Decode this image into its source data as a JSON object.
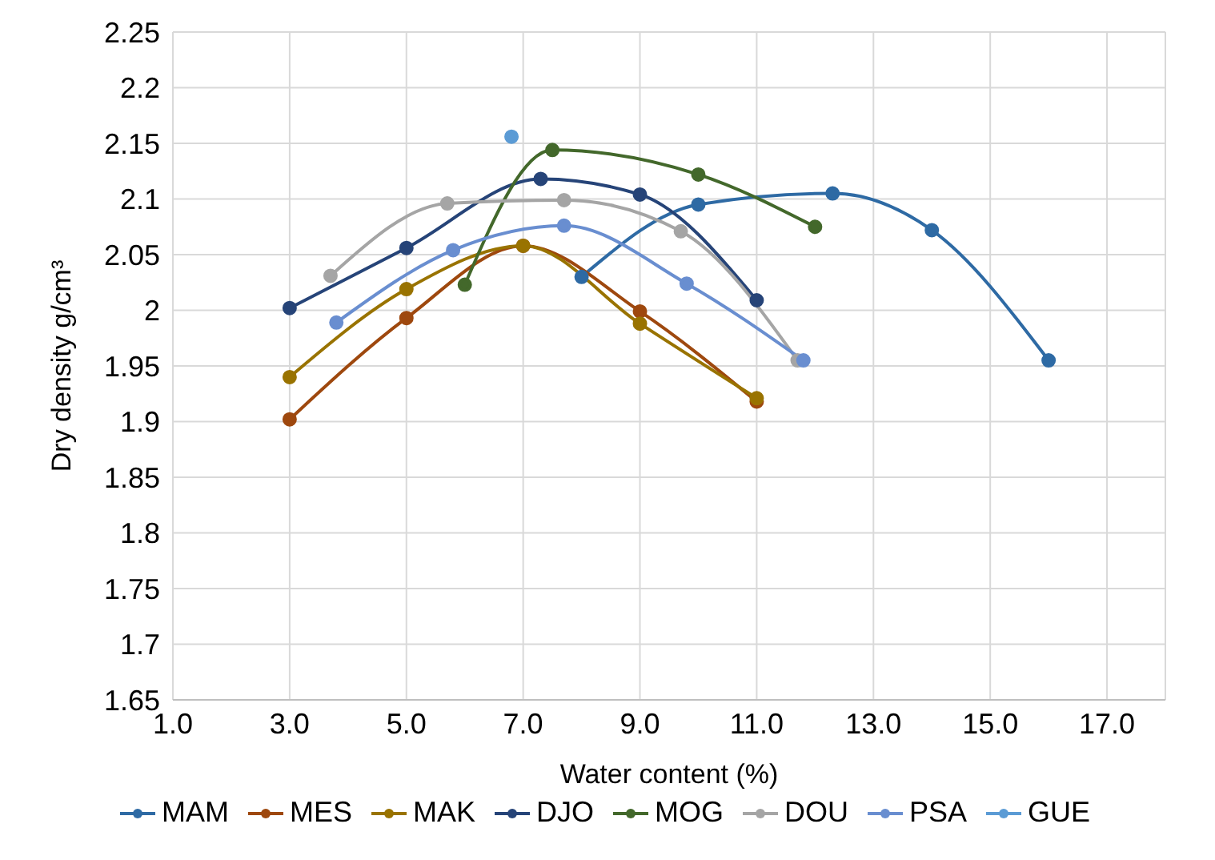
{
  "chart_data": {
    "type": "line",
    "xlabel": "Water content (%)",
    "ylabel": "Dry density g/cm³",
    "xlim": [
      1,
      18
    ],
    "xticks": [
      {
        "value": 1,
        "label": "1.0"
      },
      {
        "value": 3,
        "label": "3.0"
      },
      {
        "value": 5,
        "label": "5.0"
      },
      {
        "value": 7,
        "label": "7.0"
      },
      {
        "value": 9,
        "label": "9.0"
      },
      {
        "value": 11,
        "label": "11.0"
      },
      {
        "value": 13,
        "label": "13.0"
      },
      {
        "value": 15,
        "label": "15.0"
      },
      {
        "value": 17,
        "label": "17.0"
      }
    ],
    "ylim": [
      1.65,
      2.25
    ],
    "yticks": [
      1.65,
      1.7,
      1.75,
      1.8,
      1.85,
      1.9,
      1.95,
      2,
      2.05,
      2.1,
      2.15,
      2.2,
      2.25
    ],
    "grid": true,
    "legend": "bottom",
    "marker": "circle",
    "line_style": "solid",
    "series": [
      {
        "name": "MAM",
        "color": "#2e6aa4",
        "x": [
          8,
          10,
          12.3,
          14,
          16
        ],
        "values": [
          2.03,
          2.095,
          2.105,
          2.072,
          1.955
        ]
      },
      {
        "name": "MES",
        "color": "#9e480e",
        "x": [
          3,
          5,
          7,
          9,
          11
        ],
        "values": [
          1.902,
          1.993,
          2.058,
          1.999,
          1.918
        ]
      },
      {
        "name": "MAK",
        "color": "#997300",
        "x": [
          3,
          5,
          7,
          9,
          11
        ],
        "values": [
          1.94,
          2.019,
          2.058,
          1.988,
          1.921
        ]
      },
      {
        "name": "DJO",
        "color": "#264478",
        "x": [
          3,
          5,
          7.3,
          9,
          11
        ],
        "values": [
          2.002,
          2.056,
          2.118,
          2.104,
          2.009
        ]
      },
      {
        "name": "MOG",
        "color": "#43682b",
        "x": [
          6,
          7.5,
          10,
          12
        ],
        "values": [
          2.023,
          2.144,
          2.122,
          2.075
        ]
      },
      {
        "name": "DOU",
        "color": "#a5a5a5",
        "x": [
          3.7,
          5.7,
          7.7,
          9.7,
          11.7
        ],
        "values": [
          2.031,
          2.096,
          2.099,
          2.071,
          1.955
        ]
      },
      {
        "name": "PSA",
        "color": "#698ed0",
        "x": [
          3.8,
          5.8,
          7.7,
          9.8,
          11.8
        ],
        "values": [
          1.989,
          2.054,
          2.076,
          2.024,
          1.955
        ]
      },
      {
        "name": "GUE",
        "color": "#5b9bd5",
        "x": [
          6.8
        ],
        "values": [
          2.156
        ]
      }
    ]
  }
}
